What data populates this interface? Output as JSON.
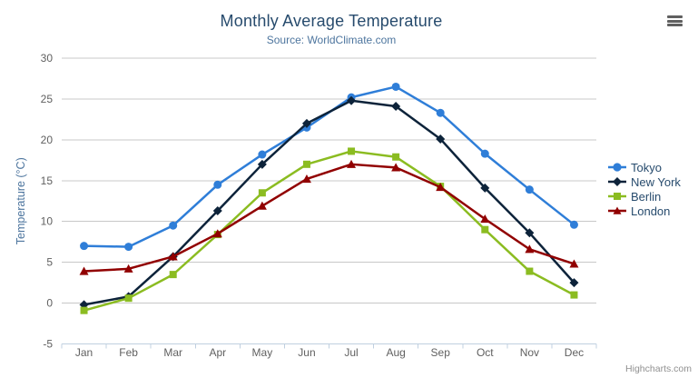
{
  "header": {
    "title": "Monthly Average Temperature",
    "subtitle": "Source: WorldClimate.com"
  },
  "credits": "Highcharts.com",
  "colors": {
    "title": "#274b6d",
    "subtitle": "#4d759e",
    "axis_label": "#606060",
    "axis_title": "#4d759e",
    "gridline": "#c8c8c8",
    "axis_line": "#c0d0e0",
    "legend_text": "#274b6d",
    "burger_icon": "#606060",
    "credits_text": "#909090"
  },
  "chart_data": {
    "type": "line",
    "title": "Monthly Average Temperature",
    "subtitle": "Source: WorldClimate.com",
    "categories": [
      "Jan",
      "Feb",
      "Mar",
      "Apr",
      "May",
      "Jun",
      "Jul",
      "Aug",
      "Sep",
      "Oct",
      "Nov",
      "Dec"
    ],
    "series": [
      {
        "name": "Tokyo",
        "color": "#2f7ed8",
        "marker": "circle",
        "values": [
          7.0,
          6.9,
          9.5,
          14.5,
          18.2,
          21.5,
          25.2,
          26.5,
          23.3,
          18.3,
          13.9,
          9.6
        ]
      },
      {
        "name": "New York",
        "color": "#0d233a",
        "marker": "diamond",
        "values": [
          -0.2,
          0.8,
          5.7,
          11.3,
          17.0,
          22.0,
          24.8,
          24.1,
          20.1,
          14.1,
          8.6,
          2.5
        ]
      },
      {
        "name": "Berlin",
        "color": "#8bbc21",
        "marker": "square",
        "values": [
          -0.9,
          0.6,
          3.5,
          8.4,
          13.5,
          17.0,
          18.6,
          17.9,
          14.3,
          9.0,
          3.9,
          1.0
        ]
      },
      {
        "name": "London",
        "color": "#910000",
        "marker": "triangle",
        "values": [
          3.9,
          4.2,
          5.7,
          8.5,
          11.9,
          15.2,
          17.0,
          16.6,
          14.2,
          10.3,
          6.6,
          4.8
        ]
      }
    ],
    "xlabel": "",
    "ylabel": "Temperature (°C)",
    "ylim": [
      -5,
      30
    ],
    "yticks": [
      -5,
      0,
      5,
      10,
      15,
      20,
      25,
      30
    ],
    "grid": true,
    "legend_position": "right"
  }
}
